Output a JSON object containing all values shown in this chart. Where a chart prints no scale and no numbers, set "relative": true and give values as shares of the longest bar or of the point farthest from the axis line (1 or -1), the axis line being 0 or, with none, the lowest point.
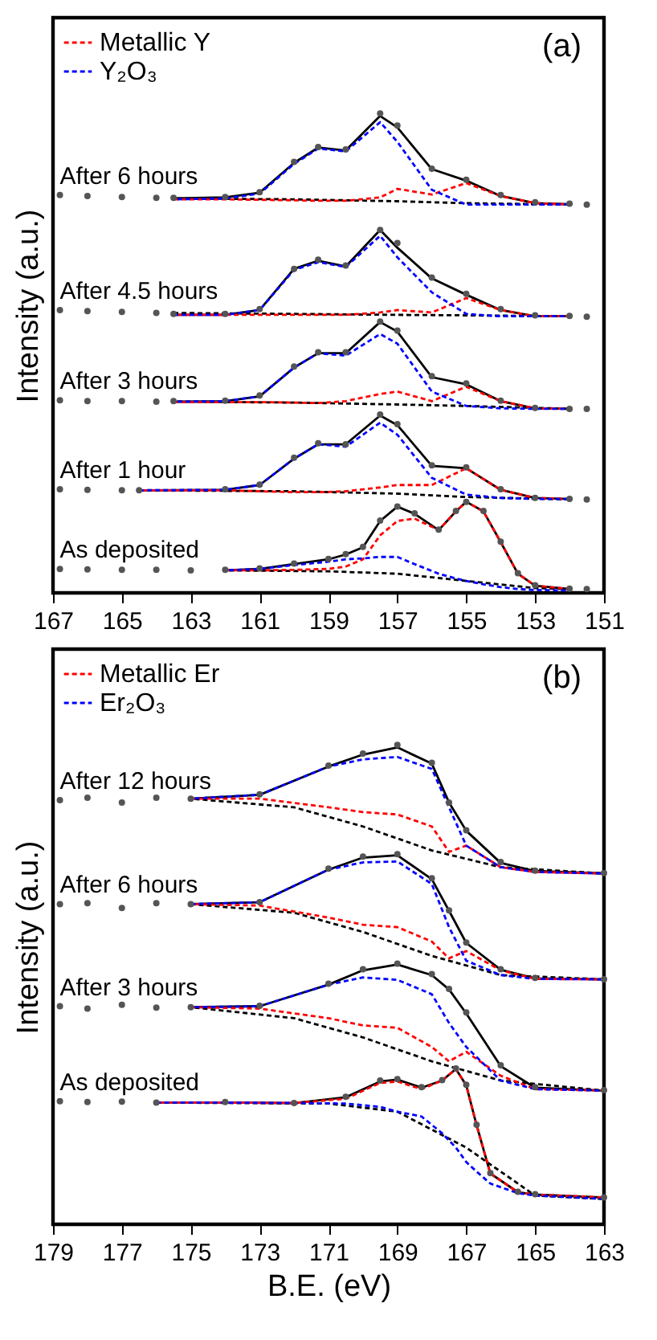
{
  "chart_data": [
    {
      "type": "line",
      "ylabel": "Intensity (a.u.)",
      "relative": true,
      "xlim": [
        167,
        151
      ],
      "xticks": [
        167,
        165,
        163,
        161,
        159,
        157,
        155,
        153,
        151
      ],
      "legend": "top left",
      "annotations": [
        "(a)"
      ],
      "series": [
        {
          "type": "scatter",
          "name": "After 6 hours",
          "color": "#555555",
          "x": [
            166.8,
            166,
            165,
            164,
            163.5,
            162,
            161,
            160,
            159.3,
            158.5,
            157.5,
            157,
            156,
            155,
            154,
            153,
            152,
            151.5
          ],
          "values": [
            0.83,
            0.828,
            0.826,
            0.824,
            0.824,
            0.826,
            0.836,
            0.899,
            0.93,
            0.925,
            1.0,
            0.975,
            0.885,
            0.862,
            0.83,
            0.815,
            0.812,
            0.81
          ]
        },
        {
          "color": "#000000",
          "line_style": "dashed",
          "x": [
            163.5,
            160,
            157,
            155,
            152
          ],
          "values": [
            0.823,
            0.821,
            0.817,
            0.813,
            0.81
          ]
        },
        {
          "name": "Metallic Y",
          "color": "#ff0000",
          "line_style": "dashed",
          "x": [
            163.5,
            162,
            161,
            160,
            159.3,
            158.5,
            157.5,
            157,
            156,
            155,
            154,
            153,
            152
          ],
          "values": [
            0.821,
            0.821,
            0.82,
            0.819,
            0.818,
            0.818,
            0.825,
            0.843,
            0.831,
            0.855,
            0.828,
            0.813,
            0.81
          ]
        },
        {
          "name": "Y₂O₃",
          "color": "#0000ff",
          "line_style": "dashed",
          "x": [
            163.5,
            162,
            161,
            160,
            159.3,
            158.5,
            157.5,
            157,
            156,
            155,
            154,
            153,
            152
          ],
          "values": [
            0.821,
            0.823,
            0.833,
            0.895,
            0.927,
            0.921,
            0.982,
            0.941,
            0.841,
            0.81,
            0.81,
            0.81,
            0.81
          ]
        },
        {
          "color": "#000000",
          "line_style": "solid",
          "x": [
            163.5,
            162,
            161,
            160,
            159.3,
            158.5,
            157.5,
            157,
            156,
            155,
            154,
            153,
            152
          ],
          "values": [
            0.823,
            0.825,
            0.835,
            0.897,
            0.929,
            0.923,
            0.995,
            0.971,
            0.884,
            0.86,
            0.828,
            0.813,
            0.811
          ]
        },
        {
          "type": "scatter",
          "name": "After 4.5 hours",
          "color": "#555555",
          "x": [
            166.8,
            166,
            165,
            164,
            163.5,
            162,
            161,
            160,
            159.3,
            158.5,
            157.5,
            157,
            156,
            155,
            154,
            153,
            152,
            151.5
          ],
          "values": [
            0.59,
            0.588,
            0.586,
            0.584,
            0.582,
            0.582,
            0.592,
            0.676,
            0.695,
            0.683,
            0.757,
            0.73,
            0.658,
            0.624,
            0.592,
            0.579,
            0.578,
            0.576
          ]
        },
        {
          "color": "#000000",
          "line_style": "dashed",
          "x": [
            163.5,
            160,
            157,
            155,
            152
          ],
          "values": [
            0.584,
            0.582,
            0.58,
            0.579,
            0.577
          ]
        },
        {
          "color": "#ff0000",
          "line_style": "dashed",
          "x": [
            163.5,
            162,
            161,
            160,
            159.3,
            158.5,
            157.5,
            157,
            156,
            155,
            154,
            153,
            152
          ],
          "values": [
            0.58,
            0.58,
            0.58,
            0.58,
            0.58,
            0.58,
            0.585,
            0.59,
            0.585,
            0.615,
            0.59,
            0.577,
            0.577
          ]
        },
        {
          "color": "#0000ff",
          "line_style": "dashed",
          "x": [
            163.5,
            162,
            161,
            160,
            159.3,
            158.5,
            157.5,
            157,
            156,
            155,
            154,
            153,
            152
          ],
          "values": [
            0.58,
            0.58,
            0.59,
            0.674,
            0.69,
            0.68,
            0.745,
            0.7,
            0.627,
            0.582,
            0.577,
            0.577,
            0.577
          ]
        },
        {
          "color": "#000000",
          "line_style": "solid",
          "x": [
            163.5,
            162,
            161,
            160,
            159.3,
            158.5,
            157.5,
            157,
            156,
            155,
            154,
            153,
            152
          ],
          "values": [
            0.58,
            0.58,
            0.59,
            0.676,
            0.693,
            0.681,
            0.757,
            0.72,
            0.656,
            0.622,
            0.59,
            0.577,
            0.577
          ]
        },
        {
          "type": "scatter",
          "name": "After 3 hours",
          "color": "#555555",
          "x": [
            166.8,
            166,
            165,
            164,
            163.5,
            162,
            161,
            160,
            159.3,
            158.5,
            157.5,
            157,
            156,
            155,
            154,
            153,
            152,
            151.5
          ],
          "values": [
            0.402,
            0.4,
            0.4,
            0.399,
            0.4,
            0.401,
            0.412,
            0.472,
            0.502,
            0.502,
            0.566,
            0.547,
            0.452,
            0.437,
            0.401,
            0.386,
            0.384,
            0.384
          ]
        },
        {
          "color": "#000000",
          "line_style": "dashed",
          "x": [
            163.5,
            160,
            157,
            155,
            152
          ],
          "values": [
            0.399,
            0.397,
            0.393,
            0.39,
            0.384
          ]
        },
        {
          "color": "#ff0000",
          "line_style": "dashed",
          "x": [
            163.5,
            162,
            161,
            160,
            159.3,
            158.5,
            157.5,
            157,
            156,
            155,
            154,
            153,
            152
          ],
          "values": [
            0.398,
            0.398,
            0.398,
            0.397,
            0.396,
            0.4,
            0.415,
            0.42,
            0.4,
            0.43,
            0.4,
            0.385,
            0.384
          ]
        },
        {
          "color": "#0000ff",
          "line_style": "dashed",
          "x": [
            163.5,
            162,
            161,
            160,
            159.3,
            158.5,
            157.5,
            157,
            156,
            155,
            154,
            153,
            152
          ],
          "values": [
            0.399,
            0.4,
            0.41,
            0.47,
            0.5,
            0.495,
            0.54,
            0.52,
            0.42,
            0.39,
            0.385,
            0.384,
            0.384
          ]
        },
        {
          "color": "#000000",
          "line_style": "solid",
          "x": [
            163.5,
            162,
            161,
            160,
            159.3,
            158.5,
            157.5,
            157,
            156,
            155,
            154,
            153,
            152
          ],
          "values": [
            0.399,
            0.4,
            0.41,
            0.47,
            0.5,
            0.5,
            0.565,
            0.545,
            0.45,
            0.435,
            0.4,
            0.385,
            0.384
          ]
        },
        {
          "type": "scatter",
          "name": "After 1 hour",
          "color": "#555555",
          "x": [
            166.8,
            166,
            165,
            164.5,
            162,
            161,
            160,
            159.3,
            158.5,
            157.5,
            157,
            156,
            155,
            154,
            153,
            152,
            151.5
          ],
          "values": [
            0.216,
            0.215,
            0.214,
            0.214,
            0.216,
            0.226,
            0.282,
            0.312,
            0.31,
            0.372,
            0.352,
            0.266,
            0.262,
            0.216,
            0.198,
            0.196,
            0.195
          ]
        },
        {
          "color": "#000000",
          "line_style": "dashed",
          "x": [
            164.5,
            160,
            157,
            155,
            152
          ],
          "values": [
            0.214,
            0.212,
            0.207,
            0.2,
            0.195
          ]
        },
        {
          "color": "#ff0000",
          "line_style": "dashed",
          "x": [
            164.5,
            162,
            161,
            160,
            159.3,
            158.5,
            157.5,
            157,
            156,
            155,
            154,
            153,
            152
          ],
          "values": [
            0.214,
            0.214,
            0.212,
            0.21,
            0.21,
            0.212,
            0.22,
            0.225,
            0.225,
            0.26,
            0.215,
            0.198,
            0.196
          ]
        },
        {
          "color": "#0000ff",
          "line_style": "dashed",
          "x": [
            164.5,
            162,
            161,
            160,
            159.3,
            158.5,
            157.5,
            157,
            156,
            155,
            154,
            153,
            152
          ],
          "values": [
            0.214,
            0.215,
            0.225,
            0.28,
            0.31,
            0.305,
            0.355,
            0.33,
            0.24,
            0.205,
            0.198,
            0.196,
            0.196
          ]
        },
        {
          "color": "#000000",
          "line_style": "solid",
          "x": [
            164.5,
            162,
            161,
            160,
            159.3,
            158.5,
            157.5,
            157,
            156,
            155,
            154,
            153,
            152
          ],
          "values": [
            0.214,
            0.215,
            0.225,
            0.28,
            0.31,
            0.31,
            0.37,
            0.35,
            0.265,
            0.26,
            0.215,
            0.198,
            0.196
          ]
        },
        {
          "type": "scatter",
          "name": "As deposited",
          "color": "#555555",
          "x": [
            166.8,
            166,
            165,
            164,
            163,
            162,
            161,
            160,
            159,
            158.5,
            158,
            157.5,
            157,
            156.5,
            155.8,
            155.3,
            155,
            154.5,
            154,
            153.5,
            153,
            152,
            151.5
          ],
          "values": [
            0.05,
            0.049,
            0.048,
            0.048,
            0.047,
            0.048,
            0.051,
            0.061,
            0.071,
            0.081,
            0.096,
            0.151,
            0.18,
            0.166,
            0.132,
            0.171,
            0.19,
            0.171,
            0.107,
            0.041,
            0.016,
            0.009,
            0.008
          ]
        },
        {
          "color": "#000000",
          "line_style": "dashed",
          "x": [
            162,
            159,
            157,
            155,
            153,
            152
          ],
          "values": [
            0.047,
            0.045,
            0.04,
            0.025,
            0.01,
            0.008
          ]
        },
        {
          "color": "#ff0000",
          "line_style": "dashed",
          "x": [
            162,
            161,
            160,
            159,
            158.5,
            158,
            157.5,
            157,
            156.5,
            155.8,
            155.3,
            155,
            154.5,
            154,
            153.5,
            153,
            152
          ],
          "values": [
            0.047,
            0.047,
            0.048,
            0.05,
            0.055,
            0.07,
            0.12,
            0.15,
            0.155,
            0.131,
            0.17,
            0.19,
            0.17,
            0.106,
            0.04,
            0.015,
            0.008
          ]
        },
        {
          "color": "#0000ff",
          "line_style": "dashed",
          "x": [
            162,
            161,
            160,
            159,
            158.5,
            158,
            157.5,
            157,
            156.5,
            155.8,
            155.3,
            155,
            154.5,
            154,
            153.5,
            153,
            152
          ],
          "values": [
            0.047,
            0.05,
            0.058,
            0.065,
            0.07,
            0.072,
            0.075,
            0.075,
            0.06,
            0.04,
            0.03,
            0.025,
            0.018,
            0.012,
            0.008,
            0.006,
            0.005
          ]
        },
        {
          "color": "#000000",
          "line_style": "solid",
          "x": [
            162,
            161,
            160,
            159,
            158.5,
            158,
            157.5,
            157,
            156.5,
            155.8,
            155.3,
            155,
            154.5,
            154,
            153.5,
            153,
            152
          ],
          "values": [
            0.047,
            0.05,
            0.06,
            0.07,
            0.08,
            0.095,
            0.15,
            0.18,
            0.165,
            0.131,
            0.17,
            0.19,
            0.17,
            0.106,
            0.04,
            0.015,
            0.008
          ]
        }
      ]
    },
    {
      "type": "line",
      "xlabel": "B.E. (eV)",
      "ylabel": "Intensity (a.u.)",
      "relative": true,
      "xlim": [
        179,
        163
      ],
      "xticks": [
        179,
        177,
        175,
        173,
        171,
        169,
        167,
        165,
        163
      ],
      "legend": "top left",
      "annotations": [
        "(b)"
      ],
      "series": [
        {
          "type": "scatter",
          "name": "After 12 hours",
          "color": "#555555",
          "x": [
            178.8,
            178,
            177,
            176,
            175,
            173,
            171,
            170,
            169,
            168,
            167.5,
            167,
            166,
            165,
            163
          ],
          "values": [
            0.885,
            0.89,
            0.88,
            0.89,
            0.888,
            0.897,
            0.957,
            0.982,
            1.0,
            0.963,
            0.88,
            0.822,
            0.756,
            0.738,
            0.733
          ]
        },
        {
          "color": "#000000",
          "line_style": "dashed",
          "x": [
            175,
            172,
            170,
            168,
            166,
            163
          ],
          "values": [
            0.888,
            0.87,
            0.83,
            0.78,
            0.745,
            0.732
          ]
        },
        {
          "name": "Metallic Er",
          "color": "#ff0000",
          "line_style": "dashed",
          "x": [
            175,
            173,
            171,
            170,
            169,
            168,
            167.5,
            167,
            166,
            165,
            163
          ],
          "values": [
            0.888,
            0.888,
            0.87,
            0.86,
            0.855,
            0.83,
            0.777,
            0.79,
            0.745,
            0.735,
            0.732
          ]
        },
        {
          "name": "Er₂O₃",
          "color": "#0000ff",
          "line_style": "dashed",
          "x": [
            175,
            173,
            171,
            170,
            169,
            168,
            167.5,
            167,
            166,
            165,
            163
          ],
          "values": [
            0.888,
            0.896,
            0.955,
            0.97,
            0.975,
            0.95,
            0.87,
            0.79,
            0.745,
            0.735,
            0.732
          ]
        },
        {
          "color": "#000000",
          "line_style": "solid",
          "x": [
            175,
            173,
            171,
            170,
            169,
            168,
            167.5,
            167,
            166,
            165,
            163
          ],
          "values": [
            0.888,
            0.896,
            0.955,
            0.98,
            0.995,
            0.961,
            0.88,
            0.821,
            0.754,
            0.737,
            0.732
          ]
        },
        {
          "type": "scatter",
          "name": "After 6 hours",
          "color": "#555555",
          "x": [
            178.8,
            178,
            177,
            176,
            175,
            173,
            171,
            170,
            169,
            168,
            167.5,
            167,
            166,
            165,
            163
          ],
          "values": [
            0.668,
            0.67,
            0.66,
            0.67,
            0.668,
            0.672,
            0.742,
            0.767,
            0.772,
            0.722,
            0.655,
            0.588,
            0.532,
            0.514,
            0.511
          ]
        },
        {
          "color": "#000000",
          "line_style": "dashed",
          "x": [
            175,
            172,
            170,
            168,
            166,
            163
          ],
          "values": [
            0.668,
            0.65,
            0.61,
            0.56,
            0.52,
            0.511
          ]
        },
        {
          "color": "#ff0000",
          "line_style": "dashed",
          "x": [
            175,
            173,
            171,
            170,
            169,
            168,
            167.5,
            167,
            166,
            165,
            163
          ],
          "values": [
            0.668,
            0.665,
            0.64,
            0.625,
            0.62,
            0.59,
            0.555,
            0.57,
            0.53,
            0.512,
            0.511
          ]
        },
        {
          "color": "#0000ff",
          "line_style": "dashed",
          "x": [
            175,
            173,
            171,
            170,
            169,
            168,
            167.5,
            167,
            166,
            165,
            163
          ],
          "values": [
            0.668,
            0.672,
            0.74,
            0.755,
            0.757,
            0.71,
            0.62,
            0.55,
            0.52,
            0.512,
            0.511
          ]
        },
        {
          "color": "#000000",
          "line_style": "solid",
          "x": [
            175,
            173,
            171,
            170,
            169,
            168,
            167.5,
            167,
            166,
            165,
            163
          ],
          "values": [
            0.668,
            0.672,
            0.74,
            0.765,
            0.77,
            0.72,
            0.654,
            0.587,
            0.531,
            0.513,
            0.511
          ]
        },
        {
          "type": "scatter",
          "name": "After 3 hours",
          "color": "#555555",
          "x": [
            178.8,
            178,
            177,
            176,
            175,
            173,
            171,
            170,
            169,
            168,
            167.5,
            167,
            166,
            165,
            163
          ],
          "values": [
            0.455,
            0.45,
            0.458,
            0.452,
            0.453,
            0.456,
            0.502,
            0.532,
            0.544,
            0.522,
            0.491,
            0.442,
            0.332,
            0.286,
            0.28
          ]
        },
        {
          "color": "#000000",
          "line_style": "dashed",
          "x": [
            175,
            172,
            170,
            168,
            166,
            163
          ],
          "values": [
            0.453,
            0.43,
            0.39,
            0.34,
            0.3,
            0.279
          ]
        },
        {
          "color": "#ff0000",
          "line_style": "dashed",
          "x": [
            175,
            173,
            171,
            170,
            169,
            168,
            167.5,
            167,
            166,
            165,
            163
          ],
          "values": [
            0.453,
            0.45,
            0.43,
            0.415,
            0.41,
            0.37,
            0.34,
            0.36,
            0.31,
            0.282,
            0.279
          ]
        },
        {
          "color": "#0000ff",
          "line_style": "dashed",
          "x": [
            175,
            173,
            171,
            170,
            169,
            168,
            167.5,
            167,
            166,
            165,
            163
          ],
          "values": [
            0.453,
            0.455,
            0.5,
            0.515,
            0.51,
            0.48,
            0.42,
            0.37,
            0.3,
            0.282,
            0.279
          ]
        },
        {
          "color": "#000000",
          "line_style": "solid",
          "x": [
            175,
            173,
            171,
            170,
            169,
            168,
            167.5,
            167,
            166,
            165,
            163
          ],
          "values": [
            0.453,
            0.455,
            0.5,
            0.53,
            0.542,
            0.52,
            0.49,
            0.44,
            0.33,
            0.285,
            0.279
          ]
        },
        {
          "type": "scatter",
          "name": "As deposited",
          "color": "#555555",
          "x": [
            178.8,
            178,
            177,
            176,
            174,
            172,
            170.5,
            169.5,
            169,
            168.3,
            167.7,
            167.3,
            167,
            166.7,
            166.3,
            165.5,
            165,
            163
          ],
          "values": [
            0.257,
            0.255,
            0.256,
            0.254,
            0.255,
            0.253,
            0.266,
            0.3,
            0.303,
            0.286,
            0.301,
            0.325,
            0.291,
            0.208,
            0.107,
            0.068,
            0.063,
            0.056
          ]
        },
        {
          "color": "#000000",
          "line_style": "dashed",
          "x": [
            176,
            171,
            169,
            167,
            165,
            163
          ],
          "values": [
            0.254,
            0.252,
            0.235,
            0.16,
            0.06,
            0.053
          ]
        },
        {
          "color": "#ff0000",
          "line_style": "dashed",
          "x": [
            176,
            174,
            172,
            170.5,
            169.5,
            169,
            168.3,
            167.7,
            167.3,
            167,
            166.7,
            166.3,
            165.5,
            165,
            163
          ],
          "values": [
            0.254,
            0.254,
            0.253,
            0.262,
            0.295,
            0.298,
            0.282,
            0.3,
            0.324,
            0.29,
            0.207,
            0.106,
            0.067,
            0.062,
            0.056
          ]
        },
        {
          "color": "#0000ff",
          "line_style": "dashed",
          "x": [
            176,
            174,
            172,
            170.5,
            169.5,
            169,
            168.3,
            167.7,
            167.3,
            167,
            166.7,
            166.3,
            165.5,
            165,
            163
          ],
          "values": [
            0.254,
            0.254,
            0.253,
            0.252,
            0.245,
            0.235,
            0.225,
            0.19,
            0.16,
            0.13,
            0.11,
            0.085,
            0.065,
            0.06,
            0.053
          ]
        },
        {
          "color": "#000000",
          "line_style": "solid",
          "x": [
            176,
            174,
            172,
            170.5,
            169.5,
            169,
            168.3,
            167.7,
            167.3,
            167,
            166.7,
            166.3,
            165.5,
            165,
            163
          ],
          "values": [
            0.254,
            0.254,
            0.253,
            0.265,
            0.298,
            0.302,
            0.285,
            0.3,
            0.324,
            0.29,
            0.207,
            0.106,
            0.067,
            0.062,
            0.056
          ]
        }
      ]
    }
  ]
}
